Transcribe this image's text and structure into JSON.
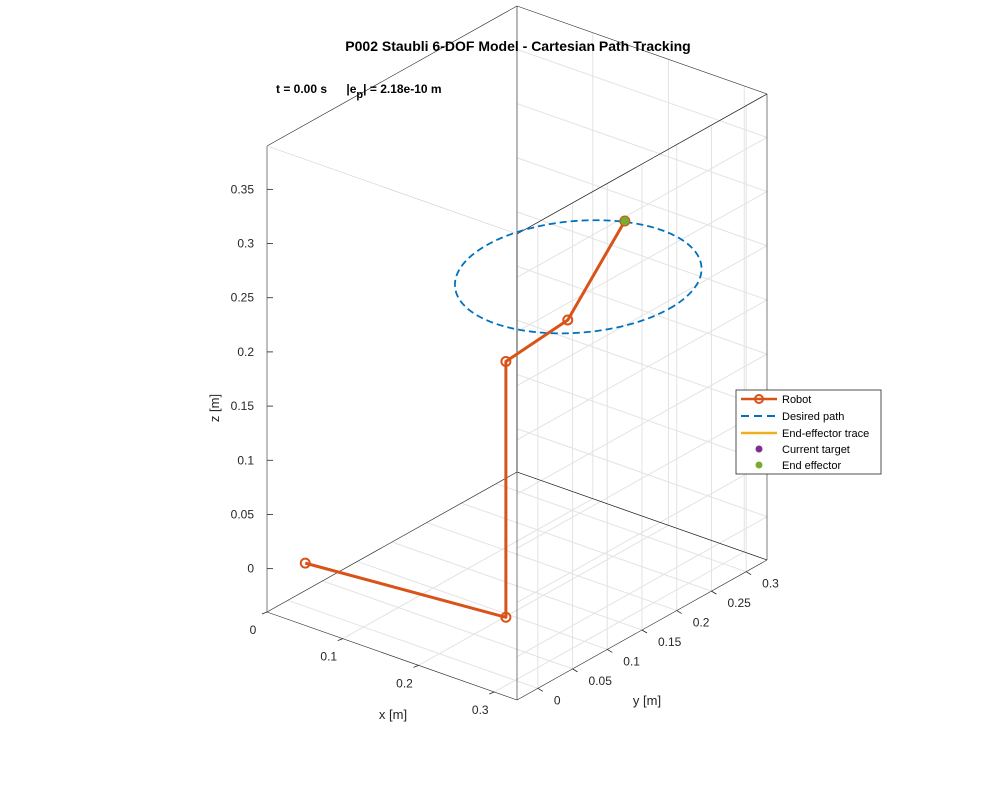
{
  "chart_data": {
    "type": "line",
    "title": "P002 Staubli 6-DOF Model - Cartesian Path Tracking",
    "annotation": {
      "time": "t = 0.00 s",
      "error_prefix": "|e",
      "error_sub": "p",
      "error_value": "| = 2.18e-10 m"
    },
    "xlabel": "x [m]",
    "ylabel": "y [m]",
    "zlabel": "z [m]",
    "xlim": [
      0,
      0.33
    ],
    "ylim": [
      -0.03,
      0.33
    ],
    "zlim": [
      -0.04,
      0.39
    ],
    "xticks": [
      "0",
      "0.1",
      "0.2",
      "0.3"
    ],
    "yticks": [
      "0",
      "0.05",
      "0.1",
      "0.15",
      "0.2",
      "0.25",
      "0.3"
    ],
    "zticks": [
      "0",
      "0.05",
      "0.1",
      "0.15",
      "0.2",
      "0.25",
      "0.3",
      "0.35"
    ],
    "grid": true,
    "legend_location": "east",
    "series": [
      {
        "name": "Robot",
        "color": "#D95319",
        "style": "solid-markers",
        "points": [
          [
            0.023,
            0.0,
            0.0
          ],
          [
            0.264,
            0.026,
            0.0
          ],
          [
            0.264,
            0.026,
            0.236
          ],
          [
            0.254,
            0.126,
            0.236
          ],
          [
            0.157,
            0.314,
            0.236
          ]
        ]
      },
      {
        "name": "Desired path",
        "color": "#0072BD",
        "style": "dashed",
        "center": [
          0.2,
          0.2,
          0.236
        ],
        "radius": 0.12
      },
      {
        "name": "End-effector trace",
        "color": "#EDB120",
        "style": "solid",
        "points": []
      },
      {
        "name": "Current target",
        "color": "#7E2F8E",
        "style": "dot",
        "points": [
          [
            0.157,
            0.314,
            0.236
          ]
        ]
      },
      {
        "name": "End effector",
        "color": "#77AC30",
        "style": "dot",
        "points": [
          [
            0.157,
            0.314,
            0.236
          ]
        ]
      }
    ]
  }
}
